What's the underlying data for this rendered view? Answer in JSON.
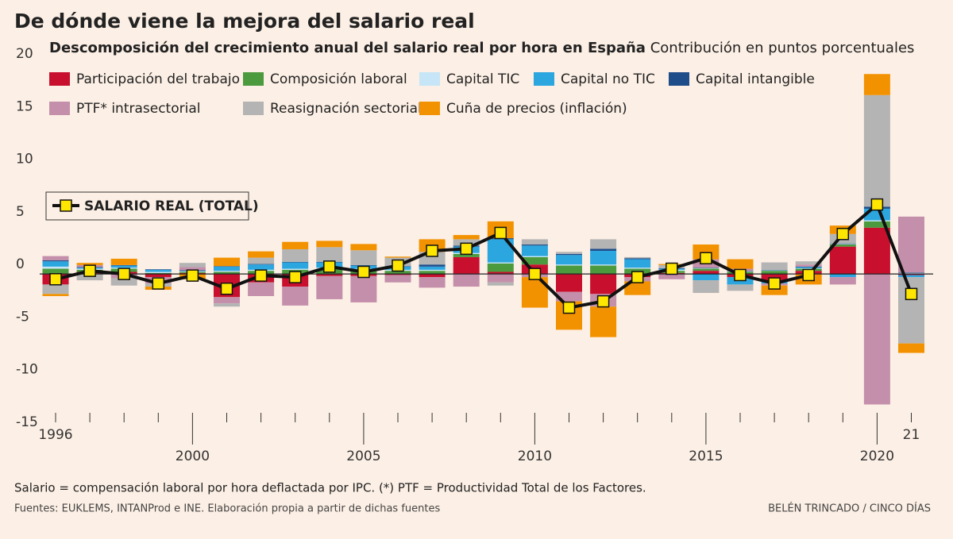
{
  "chart_data": {
    "type": "bar",
    "stacked": true,
    "title": "De dónde viene la mejora del salario real",
    "subtitle": "Descomposición del crecimiento anual del salario real por hora en España",
    "subtitle_unit": "Contribución en puntos porcentuales",
    "categories": [
      "1996",
      null,
      null,
      null,
      "2000",
      null,
      null,
      null,
      null,
      "2005",
      null,
      null,
      null,
      null,
      "2010",
      null,
      null,
      null,
      null,
      "2015",
      null,
      null,
      null,
      null,
      "2020",
      "21"
    ],
    "series": [
      {
        "name": "Participación del trabajo",
        "color": "#c8102e",
        "values": [
          -1.0,
          0.2,
          0.2,
          -0.3,
          0.1,
          -2.2,
          -0.8,
          -1.2,
          -0.2,
          -0.2,
          -0.1,
          -0.3,
          1.6,
          0.2,
          0.9,
          -1.7,
          -1.9,
          -0.3,
          0.1,
          0.3,
          -0.3,
          -0.6,
          0.3,
          2.6,
          4.4,
          -0.1
        ]
      },
      {
        "name": "Composición laboral",
        "color": "#4c9a3e",
        "values": [
          0.5,
          0.2,
          0.3,
          0.1,
          0.1,
          0.2,
          0.3,
          0.4,
          0.5,
          0.4,
          0.3,
          0.3,
          0.3,
          0.8,
          0.7,
          0.8,
          0.8,
          0.5,
          0.2,
          0.2,
          0.2,
          0.3,
          0.2,
          0.2,
          0.6,
          0.05
        ]
      },
      {
        "name": "Capital TIC",
        "color": "#c6e5f6",
        "values": [
          0.2,
          0.1,
          0.1,
          0.1,
          0.05,
          0.1,
          0.1,
          0.1,
          0.1,
          0.1,
          0.1,
          0.1,
          0.1,
          0.1,
          0.1,
          0.1,
          0.1,
          0.1,
          0.1,
          0.05,
          0.05,
          0.05,
          0.05,
          0.05,
          0.1,
          0.05
        ]
      },
      {
        "name": "Capital no TIC",
        "color": "#2ba6df",
        "values": [
          0.5,
          0.1,
          0.2,
          0.2,
          0.05,
          0.4,
          0.5,
          0.6,
          0.5,
          0.3,
          0.3,
          0.3,
          0.6,
          2.2,
          1.0,
          0.9,
          1.3,
          0.8,
          0.1,
          -0.6,
          -0.7,
          -0.3,
          0.1,
          -0.3,
          1.1,
          -0.2
        ]
      },
      {
        "name": "Capital intangible",
        "color": "#1f4d8a",
        "values": [
          0.1,
          0.05,
          0.05,
          0.05,
          0.05,
          0.05,
          0.05,
          0.05,
          0.05,
          0.05,
          0.05,
          0.2,
          0.1,
          0.1,
          0.1,
          0.1,
          0.2,
          0.1,
          0.05,
          0.05,
          0.05,
          0.05,
          0.05,
          0.05,
          0.2,
          0.05
        ]
      },
      {
        "name": "PTF* intrasectorial",
        "color": "#c48fab",
        "values": [
          0.4,
          0.2,
          -0.4,
          -0.6,
          0.3,
          -0.6,
          -1.3,
          -1.8,
          -2.2,
          -2.5,
          -0.7,
          -1.0,
          -1.2,
          -0.8,
          -0.3,
          -0.9,
          -1.2,
          -0.4,
          -0.5,
          0.8,
          0.2,
          -0.2,
          0.2,
          -0.7,
          -12.4,
          5.3
        ]
      },
      {
        "name": "Reasignación sectorial",
        "color": "#b4b4b4",
        "values": [
          -0.9,
          -0.6,
          -0.7,
          -0.3,
          0.4,
          -0.3,
          0.6,
          1.2,
          1.4,
          1.4,
          0.8,
          1.2,
          0.6,
          -0.3,
          0.5,
          0.2,
          0.9,
          0.1,
          0.3,
          -1.2,
          -0.6,
          0.7,
          0.3,
          0.9,
          10.6,
          -6.3
        ]
      },
      {
        "name": "Cuña de precios (inflación)",
        "color": "#f39200",
        "values": [
          -0.2,
          0.2,
          0.6,
          -0.3,
          -0.5,
          0.8,
          0.6,
          0.7,
          0.6,
          0.6,
          0.1,
          1.2,
          0.4,
          1.6,
          -2.9,
          -2.7,
          -2.9,
          -1.3,
          0.1,
          1.4,
          0.9,
          -0.9,
          -1.0,
          0.8,
          2.0,
          -0.9
        ]
      },
      {
        "name": "SALARIO REAL (TOTAL)",
        "type": "line",
        "color": "#111111",
        "marker_color": "#ffe600",
        "values": [
          -0.5,
          0.3,
          0.0,
          -0.9,
          -0.15,
          -1.4,
          -0.15,
          -0.3,
          0.7,
          0.2,
          0.8,
          2.2,
          2.4,
          3.9,
          0.0,
          -3.2,
          -2.6,
          -0.3,
          0.5,
          1.5,
          -0.1,
          -0.9,
          -0.1,
          3.8,
          6.6,
          -1.9
        ]
      }
    ],
    "ylim": [
      -15,
      20
    ],
    "yticks": [
      20,
      15,
      10,
      5,
      0,
      -5,
      -10,
      -15
    ],
    "grid": false,
    "note": "Salario = compensación laboral por hora deflactada por IPC. (*) PTF = Productividad Total de los Factores.",
    "source": "Fuentes: EUKLEMS, INTANProd e INE. Elaboración propia a partir de dichas fuentes",
    "credit": "BELÉN TRINCADO / CINCO DÍAS"
  }
}
